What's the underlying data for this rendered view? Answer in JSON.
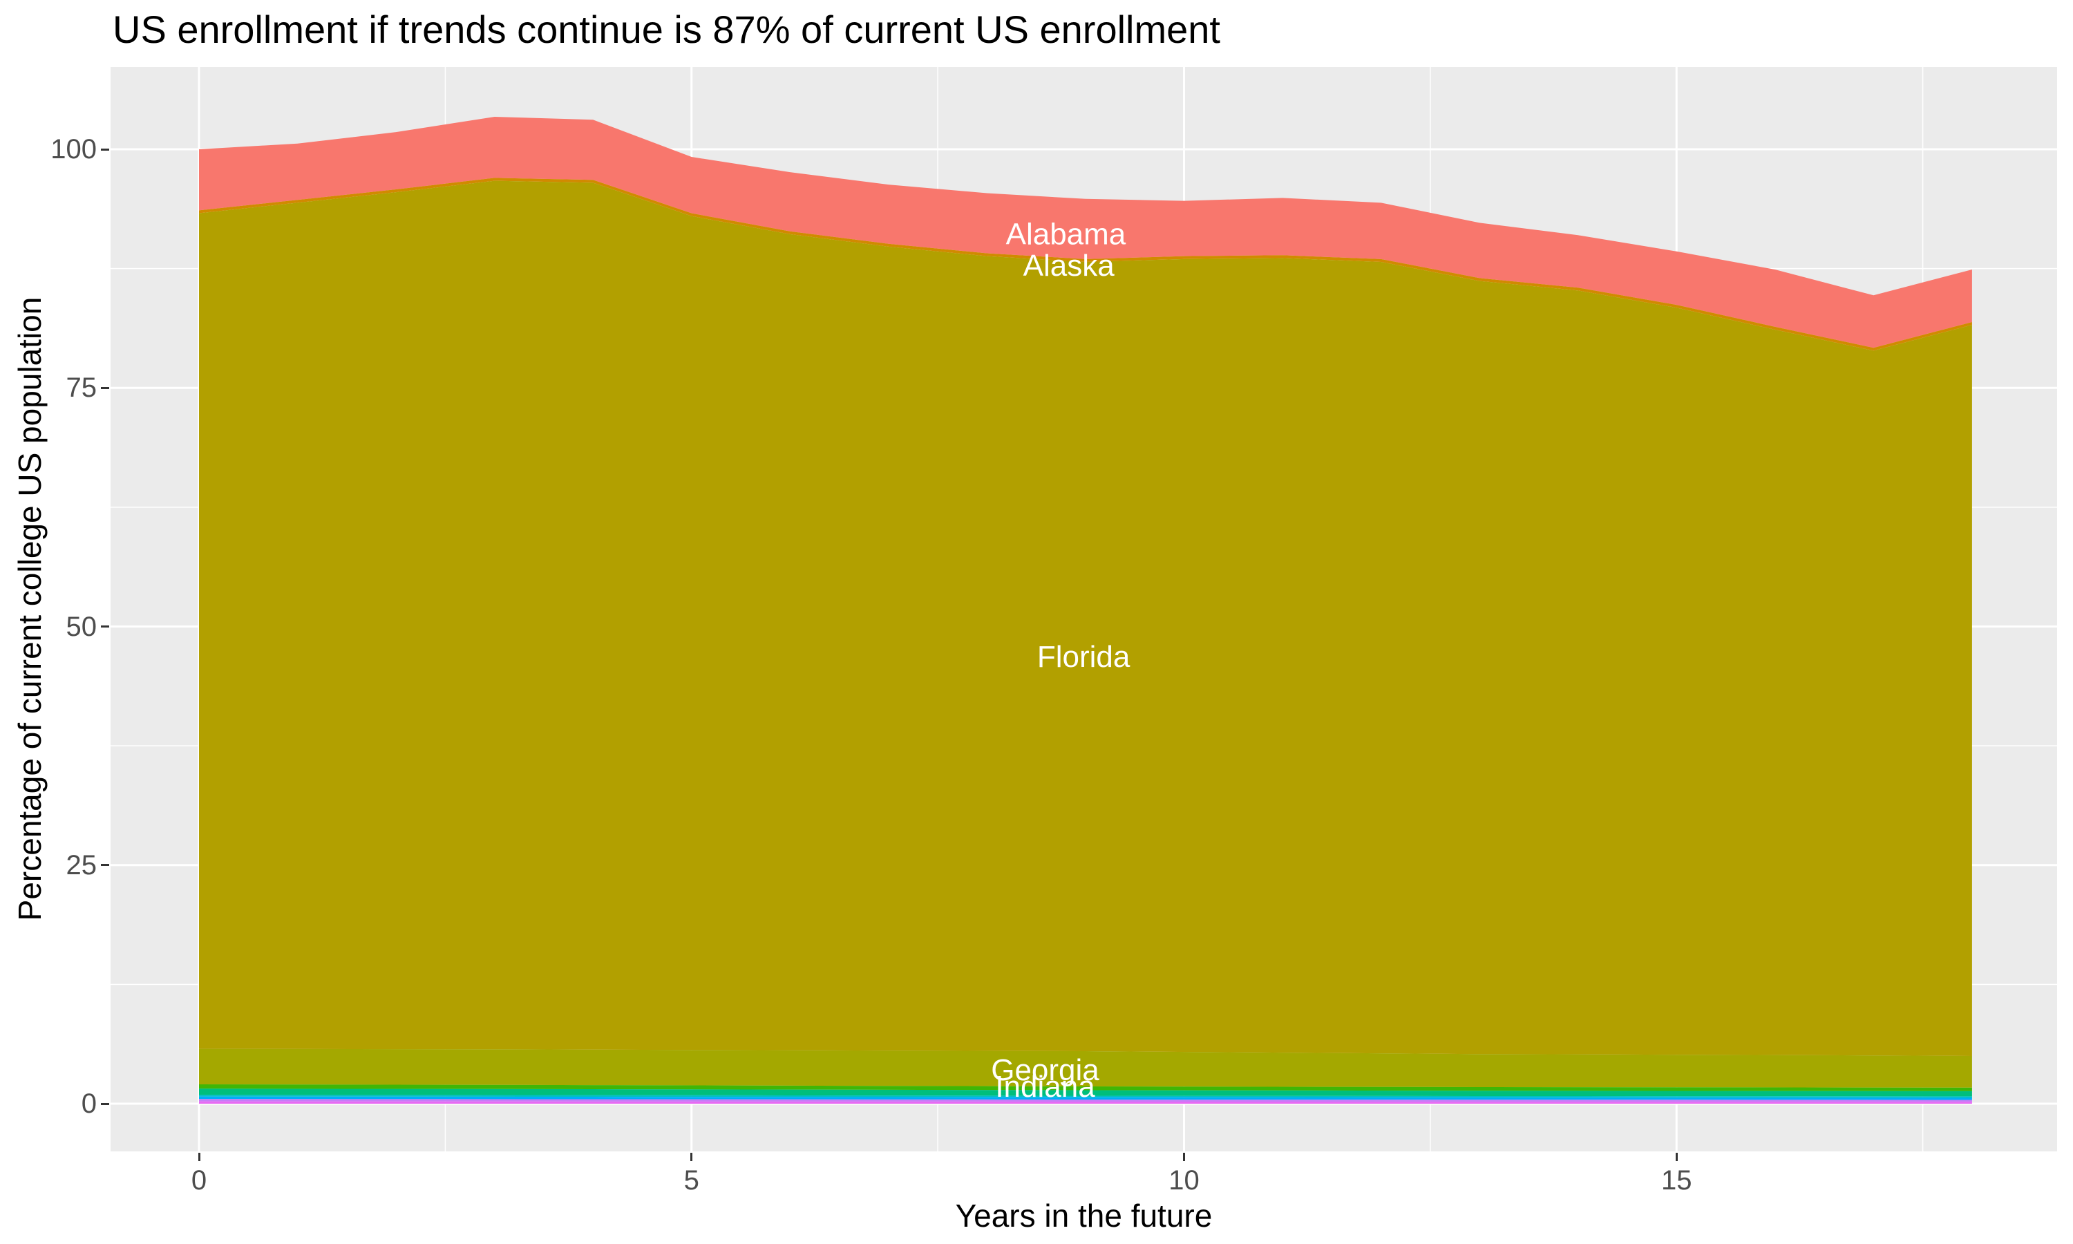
{
  "title": "US enrollment if trends continue is 87% of current US enrollment",
  "x_axis": {
    "title": "Years in the future",
    "major_ticks": [
      0,
      5,
      10,
      15
    ],
    "minor_ticks": [
      2.5,
      7.5,
      12.5,
      17.5
    ],
    "range": [
      0,
      18
    ]
  },
  "y_axis": {
    "title": "Percentage of current college US population",
    "major_ticks": [
      0,
      25,
      50,
      75,
      100
    ],
    "minor_ticks": [
      12.5,
      37.5,
      62.5,
      87.5
    ],
    "range_shown": [
      -5,
      108.6
    ]
  },
  "colors": {
    "panel_background": "#EBEBEB",
    "gridline": "#FFFFFF",
    "tick_text": "#4D4D4D",
    "area_label_text": "#FFFFFF"
  },
  "chart_data": {
    "type": "area",
    "stacked": true,
    "x_unit": "years",
    "x": [
      0,
      1,
      2,
      3,
      4,
      5,
      6,
      7,
      8,
      9,
      10,
      11,
      12,
      13,
      14,
      15,
      16,
      17,
      18
    ],
    "boundaries": {
      "total_top": [
        [
          0,
          100.0
        ],
        [
          1,
          100.6
        ],
        [
          2,
          101.8
        ],
        [
          3,
          103.4
        ],
        [
          4,
          103.1
        ],
        [
          5,
          99.2
        ],
        [
          6,
          97.6
        ],
        [
          7,
          96.3
        ],
        [
          8,
          95.4
        ],
        [
          9,
          94.8
        ],
        [
          10,
          94.6
        ],
        [
          11,
          94.9
        ],
        [
          12,
          94.4
        ],
        [
          13,
          92.3
        ],
        [
          14,
          91.0
        ],
        [
          15,
          89.3
        ],
        [
          16,
          87.4
        ],
        [
          17,
          84.7
        ],
        [
          18,
          87.4
        ]
      ],
      "alaska_top": [
        [
          0,
          93.6
        ],
        [
          1,
          94.7
        ],
        [
          2,
          95.8
        ],
        [
          3,
          97.0
        ],
        [
          4,
          96.8
        ],
        [
          5,
          93.3
        ],
        [
          6,
          91.4
        ],
        [
          7,
          90.1
        ],
        [
          8,
          89.1
        ],
        [
          9,
          88.5
        ],
        [
          10,
          88.8
        ],
        [
          11,
          88.9
        ],
        [
          12,
          88.5
        ],
        [
          13,
          86.5
        ],
        [
          14,
          85.5
        ],
        [
          15,
          83.7
        ],
        [
          16,
          81.4
        ],
        [
          17,
          79.2
        ],
        [
          18,
          81.9
        ]
      ],
      "florida_top": [
        [
          0,
          93.3
        ],
        [
          1,
          94.4
        ],
        [
          2,
          95.5
        ],
        [
          3,
          96.7
        ],
        [
          4,
          96.5
        ],
        [
          5,
          93.0
        ],
        [
          6,
          91.1
        ],
        [
          7,
          89.8
        ],
        [
          8,
          88.8
        ],
        [
          9,
          88.2
        ],
        [
          10,
          88.5
        ],
        [
          11,
          88.6
        ],
        [
          12,
          88.2
        ],
        [
          13,
          86.2
        ],
        [
          14,
          85.2
        ],
        [
          15,
          83.4
        ],
        [
          16,
          81.1
        ],
        [
          17,
          78.9
        ],
        [
          18,
          81.6
        ]
      ],
      "georgia_top": [
        [
          0,
          5.75
        ],
        [
          3,
          5.7
        ],
        [
          6,
          5.6
        ],
        [
          9,
          5.5
        ],
        [
          13,
          5.2
        ],
        [
          16,
          5.1
        ],
        [
          18,
          5.0
        ]
      ],
      "others_top": [
        [
          0,
          2.03
        ],
        [
          4,
          1.95
        ],
        [
          9,
          1.81
        ],
        [
          13,
          1.74
        ],
        [
          18,
          1.68
        ]
      ],
      "green_bottom": [
        [
          0,
          1.58
        ],
        [
          4,
          1.52
        ],
        [
          9,
          1.41
        ],
        [
          13,
          1.36
        ],
        [
          18,
          1.31
        ]
      ],
      "emerald_bottom": [
        [
          0,
          0.93
        ],
        [
          4,
          0.9
        ],
        [
          9,
          0.83
        ],
        [
          13,
          0.8
        ],
        [
          18,
          0.77
        ]
      ],
      "teal_bottom": [
        [
          0,
          0.75
        ],
        [
          4,
          0.72
        ],
        [
          9,
          0.67
        ],
        [
          13,
          0.64
        ],
        [
          18,
          0.62
        ]
      ],
      "azure_bottom": [
        [
          0,
          0.49
        ],
        [
          4,
          0.47
        ],
        [
          9,
          0.43
        ],
        [
          13,
          0.42
        ],
        [
          18,
          0.4
        ]
      ],
      "violet_bottom": [
        [
          0,
          0.24
        ],
        [
          4,
          0.23
        ],
        [
          9,
          0.22
        ],
        [
          13,
          0.21
        ],
        [
          18,
          0.2
        ]
      ],
      "zero": [
        [
          0,
          0
        ],
        [
          18,
          0
        ]
      ]
    },
    "series": [
      {
        "label": "Alabama",
        "color": "#F8776D",
        "top": "total_top",
        "bottom": "alaska_top"
      },
      {
        "label": "Alaska",
        "color": "#D18A00",
        "top": "alaska_top",
        "bottom": "florida_top"
      },
      {
        "label": "Florida",
        "color": "#B2A000",
        "top": "florida_top",
        "bottom": "georgia_top"
      },
      {
        "label": "Georgia",
        "color": "#A4A800",
        "top": "georgia_top",
        "bottom": "others_top"
      },
      {
        "label": "",
        "color": "#40B606",
        "top": "others_top",
        "bottom": "green_bottom"
      },
      {
        "label": "",
        "color": "#00BE7C",
        "top": "green_bottom",
        "bottom": "emerald_bottom"
      },
      {
        "label": "",
        "color": "#00BFC4",
        "top": "emerald_bottom",
        "bottom": "teal_bottom"
      },
      {
        "label": "",
        "color": "#00AEF8",
        "top": "teal_bottom",
        "bottom": "azure_bottom"
      },
      {
        "label": "",
        "color": "#C57CF7",
        "top": "azure_bottom",
        "bottom": "violet_bottom"
      },
      {
        "label": "",
        "color": "#E76BF3",
        "top": "violet_bottom",
        "bottom": "zero"
      }
    ],
    "annotations": [
      {
        "text": "Alabama",
        "x": 8.8,
        "y": 90.9
      },
      {
        "text": "Alaska",
        "x": 8.83,
        "y": 87.6
      },
      {
        "text": "Florida",
        "x": 8.98,
        "y": 46.6
      },
      {
        "text": "Georgia",
        "x": 8.59,
        "y": 3.3
      },
      {
        "text": "Indiana",
        "x": 8.59,
        "y": 1.55
      }
    ]
  }
}
